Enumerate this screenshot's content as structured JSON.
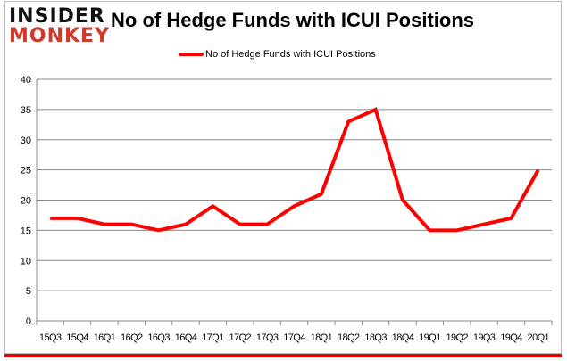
{
  "logo": {
    "line1": "INSIDER",
    "line2": "MONKEY"
  },
  "chart_data": {
    "type": "line",
    "title": "No of Hedge Funds with ICUI Positions",
    "categories": [
      "15Q3",
      "15Q4",
      "16Q1",
      "16Q2",
      "16Q3",
      "16Q4",
      "17Q1",
      "17Q2",
      "17Q3",
      "17Q4",
      "18Q1",
      "18Q2",
      "18Q3",
      "18Q4",
      "19Q1",
      "19Q2",
      "19Q3",
      "19Q4",
      "20Q1"
    ],
    "series": [
      {
        "name": "No of Hedge Funds with ICUI Positions",
        "values": [
          17,
          17,
          16,
          16,
          15,
          16,
          19,
          16,
          16,
          19,
          21,
          33,
          35,
          20,
          15,
          15,
          16,
          17,
          25
        ],
        "color": "#ff0000"
      }
    ],
    "yticks": [
      "0",
      "5",
      "10",
      "15",
      "20",
      "25",
      "30",
      "35",
      "40"
    ],
    "ylim": [
      0,
      40
    ],
    "grid": true,
    "legend": "top"
  }
}
